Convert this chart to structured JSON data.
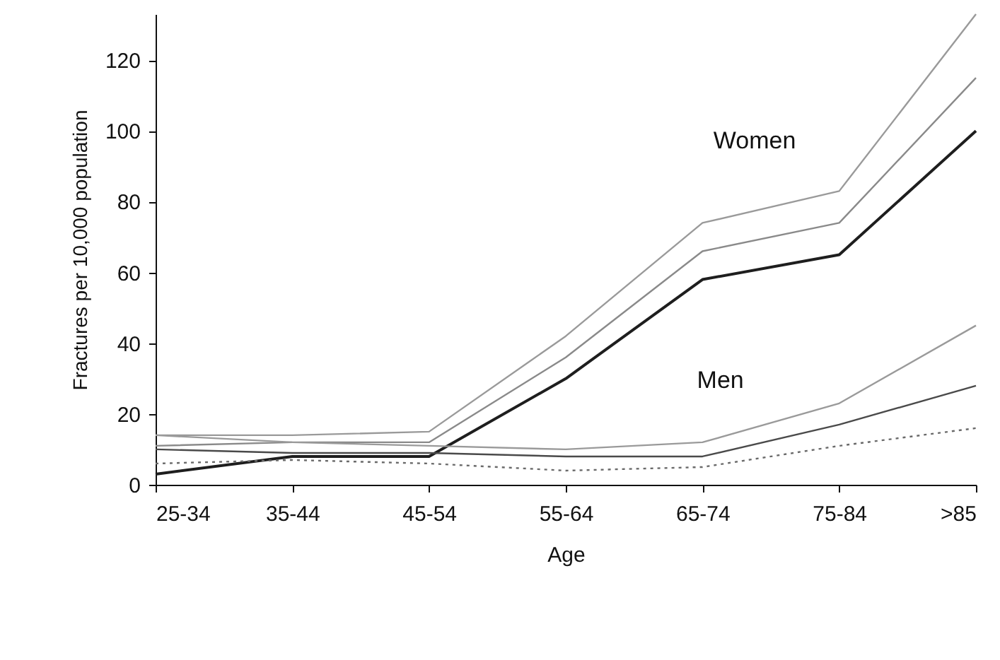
{
  "chart_data": {
    "type": "line",
    "xlabel": "Age",
    "ylabel": "Fractures per 10,000 population",
    "categories": [
      "25-34",
      "35-44",
      "45-54",
      "55-64",
      "65-74",
      "75-84",
      ">85"
    ],
    "series": [
      {
        "color": "#9a9a9a",
        "values": [
          14,
          14,
          15,
          42,
          74,
          83,
          133
        ]
      },
      {
        "color": "#8a8a8a",
        "values": [
          11,
          12,
          12,
          36,
          66,
          74,
          115
        ]
      },
      {
        "color": "#1e1e1e",
        "values": [
          3,
          8,
          8,
          30,
          58,
          65,
          100
        ]
      },
      {
        "color": "#9a9a9a",
        "values": [
          14,
          12,
          11,
          10,
          12,
          23,
          45
        ]
      },
      {
        "color": "#4a4a4a",
        "values": [
          10,
          9,
          9,
          8,
          8,
          17,
          28
        ]
      },
      {
        "color": "#6a6a6a",
        "line_style": "dotted",
        "values": [
          6,
          7,
          6,
          4,
          5,
          11,
          16
        ]
      }
    ],
    "annotations": [
      "Women",
      "Men"
    ],
    "ylim": [
      0,
      133
    ],
    "yticks": [
      0,
      20,
      40,
      60,
      80,
      100,
      120
    ],
    "grid": false,
    "marker": "none"
  }
}
